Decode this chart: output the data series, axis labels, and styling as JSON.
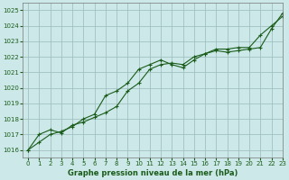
{
  "title": "Graphe pression niveau de la mer (hPa)",
  "bg_color": "#cce8e8",
  "grid_color": "#99bbbb",
  "line_color": "#1a5c1a",
  "xlim": [
    -0.5,
    23
  ],
  "ylim": [
    1015.5,
    1025.5
  ],
  "yticks": [
    1016,
    1017,
    1018,
    1019,
    1020,
    1021,
    1022,
    1023,
    1024,
    1025
  ],
  "xticks": [
    0,
    1,
    2,
    3,
    4,
    5,
    6,
    7,
    8,
    9,
    10,
    11,
    12,
    13,
    14,
    15,
    16,
    17,
    18,
    19,
    20,
    21,
    22,
    23
  ],
  "series1_x": [
    0,
    1,
    2,
    3,
    4,
    5,
    6,
    7,
    8,
    9,
    10,
    11,
    12,
    13,
    14,
    15,
    16,
    17,
    18,
    19,
    20,
    21,
    22,
    23
  ],
  "series1_y": [
    1016.0,
    1016.5,
    1017.0,
    1017.2,
    1017.5,
    1018.0,
    1018.3,
    1019.5,
    1019.8,
    1020.3,
    1021.2,
    1021.5,
    1021.8,
    1021.5,
    1021.3,
    1021.8,
    1022.2,
    1022.4,
    1022.3,
    1022.4,
    1022.5,
    1022.6,
    1023.8,
    1024.8
  ],
  "series2_x": [
    0,
    1,
    2,
    3,
    4,
    5,
    6,
    7,
    8,
    9,
    10,
    11,
    12,
    13,
    14,
    15,
    16,
    17,
    18,
    19,
    20,
    21,
    22,
    23
  ],
  "series2_y": [
    1016.0,
    1017.0,
    1017.3,
    1017.1,
    1017.6,
    1017.8,
    1018.1,
    1018.4,
    1018.8,
    1019.8,
    1020.3,
    1021.2,
    1021.5,
    1021.6,
    1021.5,
    1022.0,
    1022.2,
    1022.5,
    1022.5,
    1022.6,
    1022.6,
    1023.4,
    1024.0,
    1024.6
  ]
}
